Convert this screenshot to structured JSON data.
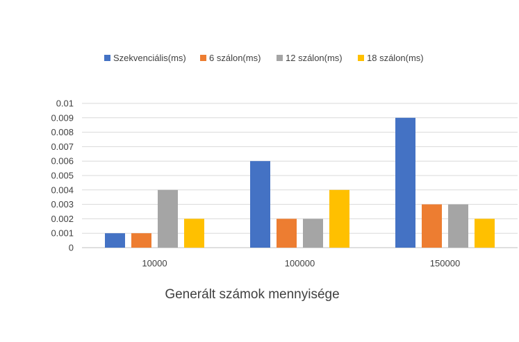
{
  "chart_data": {
    "type": "bar",
    "title": "",
    "xlabel": "Generált számok mennyisége",
    "ylabel": "",
    "categories": [
      "10000",
      "100000",
      "150000"
    ],
    "series": [
      {
        "name": "Szekvenciális(ms)",
        "color": "#4472c4",
        "values": [
          0.001,
          0.006,
          0.009
        ]
      },
      {
        "name": "6 szálon(ms)",
        "color": "#ed7d31",
        "values": [
          0.001,
          0.002,
          0.003
        ]
      },
      {
        "name": "12 szálon(ms)",
        "color": "#a5a5a5",
        "values": [
          0.004,
          0.002,
          0.003
        ]
      },
      {
        "name": "18 szálon(ms)",
        "color": "#ffc000",
        "values": [
          0.002,
          0.004,
          0.002
        ]
      }
    ],
    "ylim": [
      0,
      0.01
    ],
    "yticks": [
      "0",
      "0.001",
      "0.002",
      "0.003",
      "0.004",
      "0.005",
      "0.006",
      "0.007",
      "0.008",
      "0.009",
      "0.01"
    ],
    "grid": true,
    "legend_position": "top"
  }
}
